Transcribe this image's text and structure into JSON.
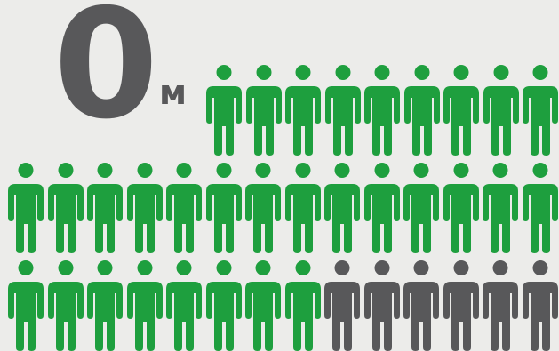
{
  "headline": {
    "value": "0",
    "unit": "м"
  },
  "pictogram": {
    "icon": "person-icon",
    "total": 38,
    "highlighted": 31,
    "remaining": 7
  },
  "colors": {
    "background": "#ececea",
    "text": "#58585a",
    "highlight": "#1e9f3e",
    "muted": "#58585a"
  }
}
